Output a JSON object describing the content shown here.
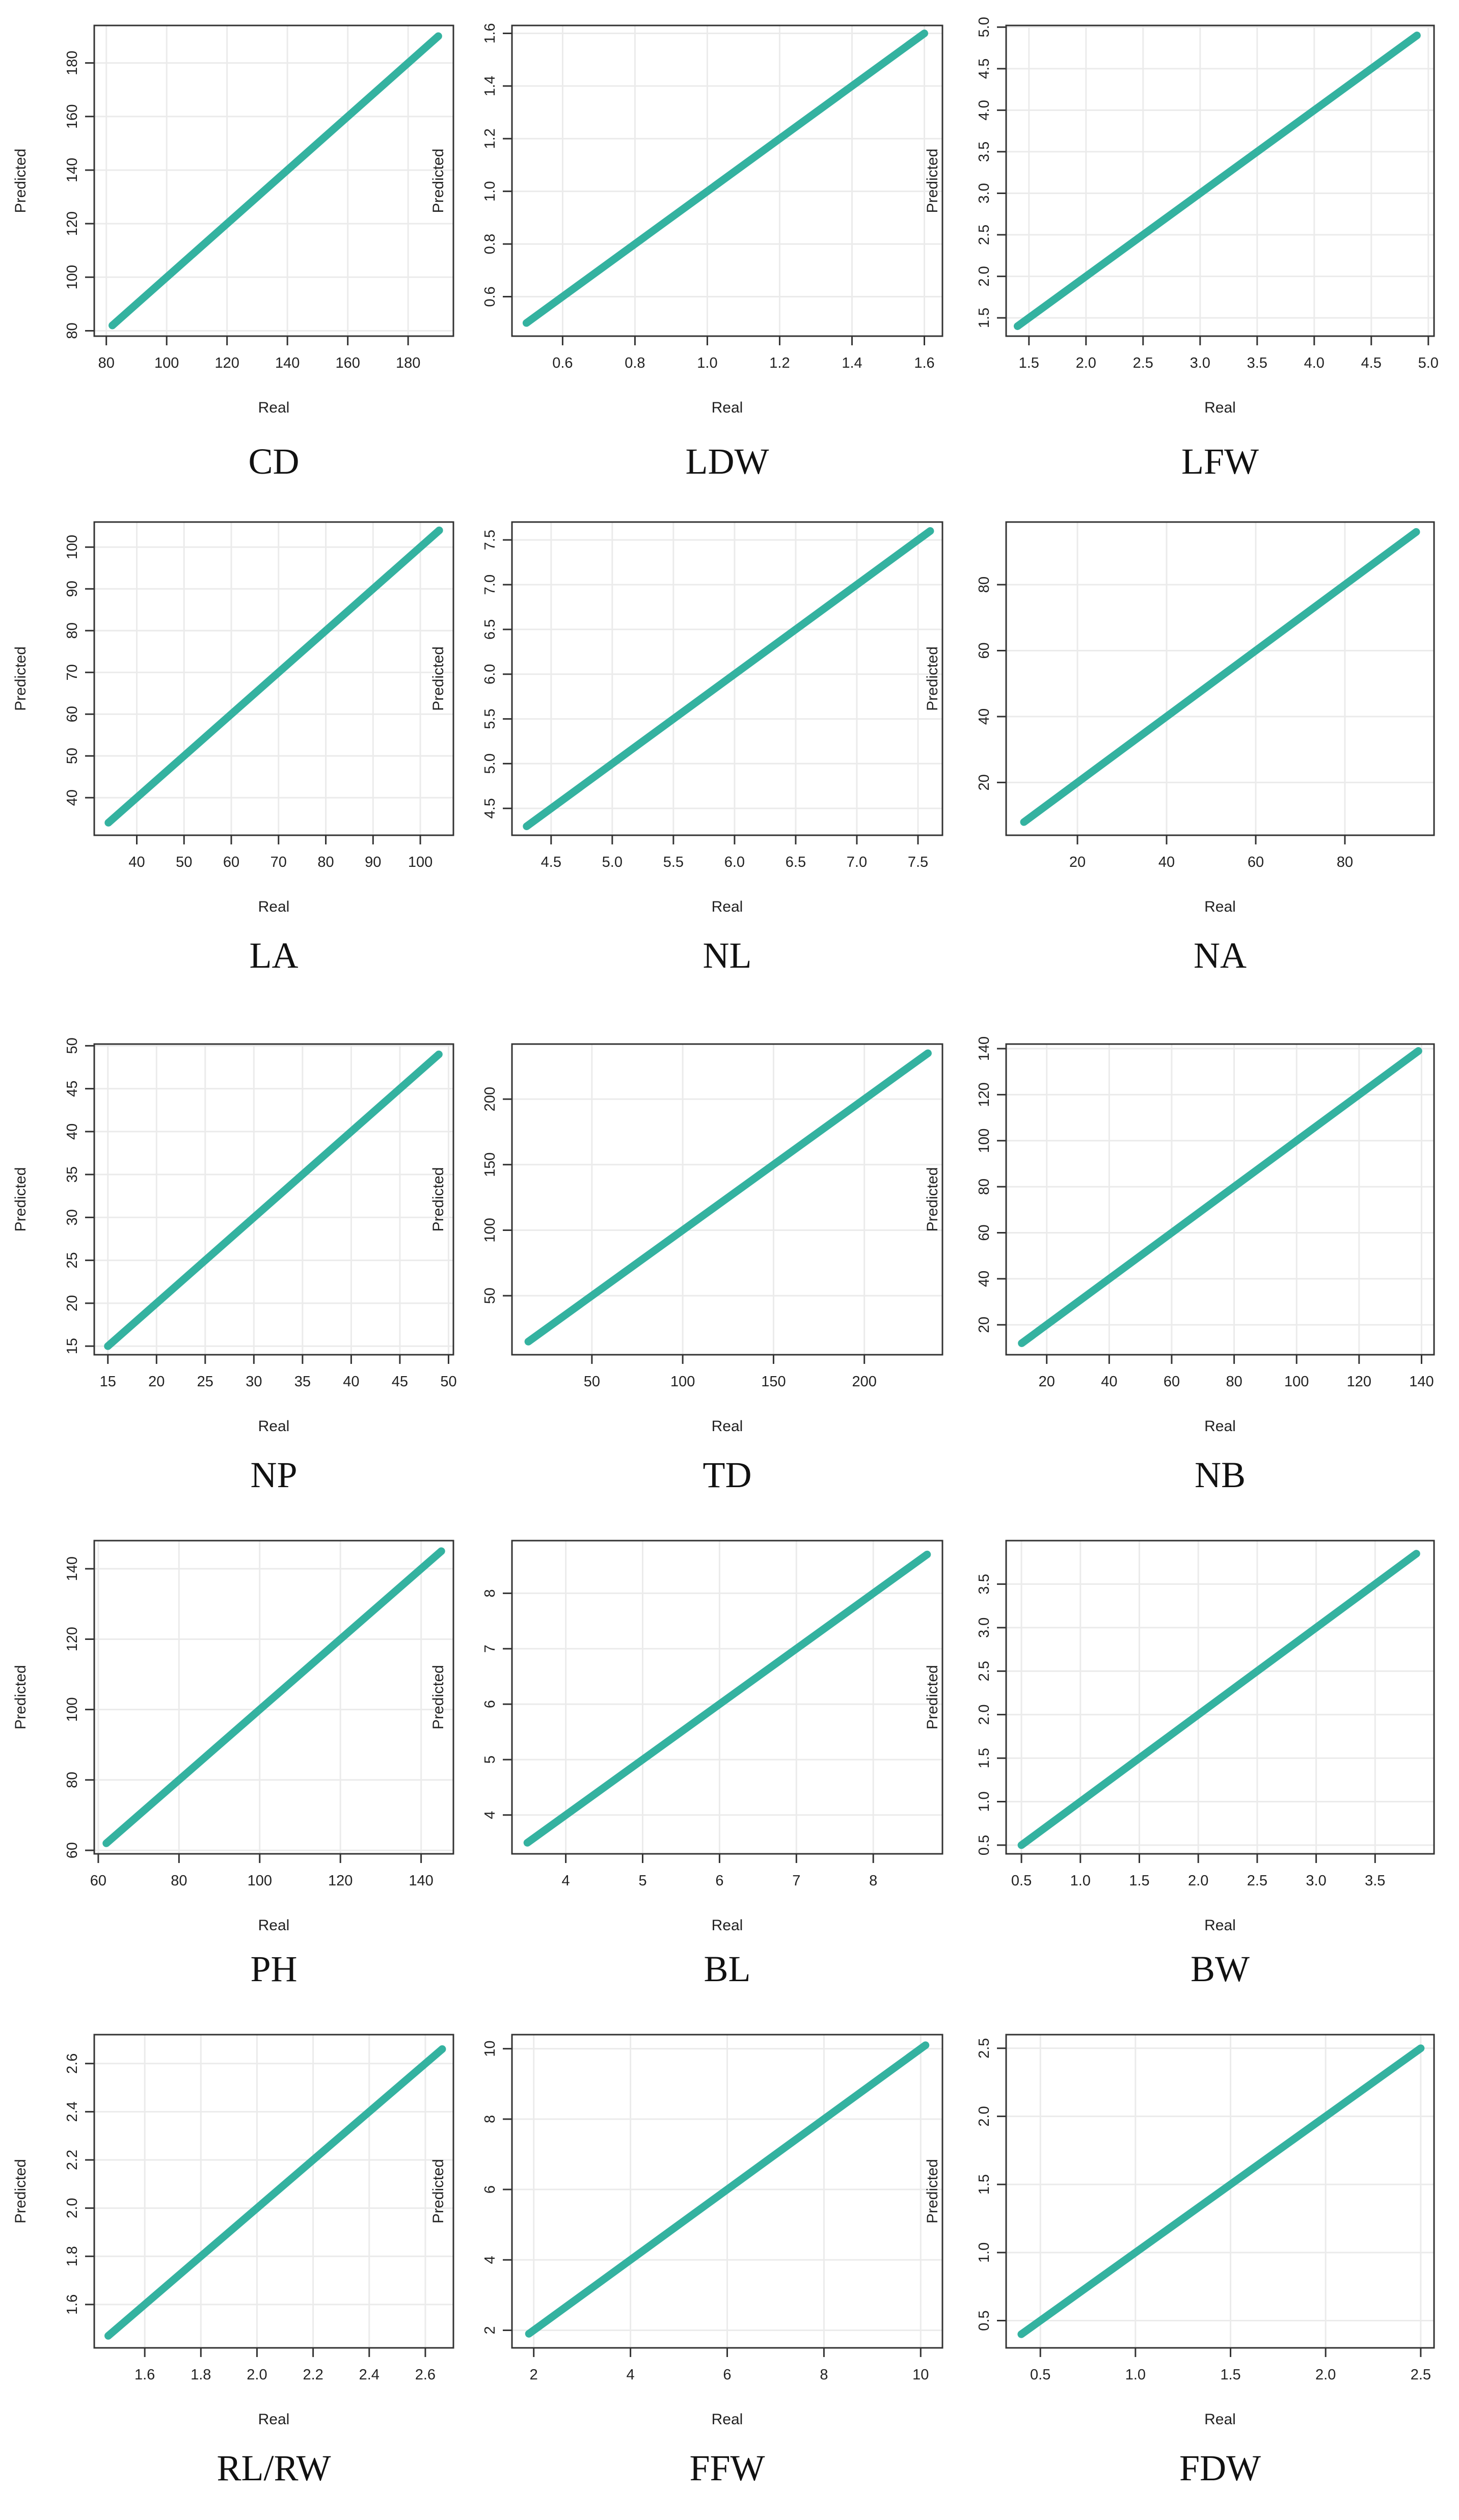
{
  "figure": {
    "xlabel": "Real",
    "ylabel": "Predicted",
    "line_color": "#34b2a0",
    "grid_color": "#ebebeb",
    "frame_color": "#333333"
  },
  "chart_data": [
    {
      "type": "line",
      "caption": "CD",
      "xlabel": "Real",
      "ylabel": "Predicted",
      "x": [
        82,
        190
      ],
      "y": [
        82,
        190
      ],
      "xlim": [
        76,
        195
      ],
      "ylim": [
        78,
        194
      ],
      "xticks": [
        80,
        100,
        120,
        140,
        160,
        180
      ],
      "yticks": [
        80,
        100,
        120,
        140,
        160,
        180
      ],
      "xtick_labels": [
        "80",
        "100",
        "120",
        "140",
        "160",
        "180"
      ],
      "ytick_labels": [
        "80",
        "100",
        "120",
        "140",
        "160",
        "180"
      ]
    },
    {
      "type": "line",
      "caption": "LDW",
      "xlabel": "Real",
      "ylabel": "Predicted",
      "x": [
        0.5,
        1.6
      ],
      "y": [
        0.5,
        1.6
      ],
      "xlim": [
        0.46,
        1.65
      ],
      "ylim": [
        0.45,
        1.63
      ],
      "xticks": [
        0.6,
        0.8,
        1.0,
        1.2,
        1.4,
        1.6
      ],
      "yticks": [
        0.6,
        0.8,
        1.0,
        1.2,
        1.4,
        1.6
      ],
      "xtick_labels": [
        "0.6",
        "0.8",
        "1.0",
        "1.2",
        "1.4",
        "1.6"
      ],
      "ytick_labels": [
        "0.6",
        "0.8",
        "1.0",
        "1.2",
        "1.4",
        "1.6"
      ]
    },
    {
      "type": "line",
      "caption": "LFW",
      "xlabel": "Real",
      "ylabel": "Predicted",
      "x": [
        1.4,
        4.9
      ],
      "y": [
        1.4,
        4.9
      ],
      "xlim": [
        1.3,
        5.05
      ],
      "ylim": [
        1.28,
        5.02
      ],
      "xticks": [
        1.5,
        2.0,
        2.5,
        3.0,
        3.5,
        4.0,
        4.5,
        5.0
      ],
      "yticks": [
        1.5,
        2.0,
        2.5,
        3.0,
        3.5,
        4.0,
        4.5,
        5.0
      ],
      "xtick_labels": [
        "1.5",
        "2.0",
        "2.5",
        "3.0",
        "3.5",
        "4.0",
        "4.5",
        "5.0"
      ],
      "ytick_labels": [
        "1.5",
        "2.0",
        "2.5",
        "3.0",
        "3.5",
        "4.0",
        "4.5",
        "5.0"
      ]
    },
    {
      "type": "line",
      "caption": "LA",
      "xlabel": "Real",
      "ylabel": "Predicted",
      "x": [
        34,
        104
      ],
      "y": [
        34,
        104
      ],
      "xlim": [
        31,
        107
      ],
      "ylim": [
        31,
        106
      ],
      "xticks": [
        40,
        50,
        60,
        70,
        80,
        90,
        100
      ],
      "yticks": [
        40,
        50,
        60,
        70,
        80,
        90,
        100
      ],
      "xtick_labels": [
        "40",
        "50",
        "60",
        "70",
        "80",
        "90",
        "100"
      ],
      "ytick_labels": [
        "40",
        "50",
        "60",
        "70",
        "80",
        "90",
        "100"
      ]
    },
    {
      "type": "line",
      "caption": "NL",
      "xlabel": "Real",
      "ylabel": "Predicted",
      "x": [
        4.3,
        7.6
      ],
      "y": [
        4.3,
        7.6
      ],
      "xlim": [
        4.18,
        7.7
      ],
      "ylim": [
        4.2,
        7.7
      ],
      "xticks": [
        4.5,
        5.0,
        5.5,
        6.0,
        6.5,
        7.0,
        7.5
      ],
      "yticks": [
        4.5,
        5.0,
        5.5,
        6.0,
        6.5,
        7.0,
        7.5
      ],
      "xtick_labels": [
        "4.5",
        "5.0",
        "5.5",
        "6.0",
        "6.5",
        "7.0",
        "7.5"
      ],
      "ytick_labels": [
        "4.5",
        "5.0",
        "5.5",
        "6.0",
        "6.5",
        "7.0",
        "7.5"
      ]
    },
    {
      "type": "line",
      "caption": "NA",
      "xlabel": "Real",
      "ylabel": "Predicted",
      "x": [
        8,
        96
      ],
      "y": [
        8,
        96
      ],
      "xlim": [
        4,
        100
      ],
      "ylim": [
        4,
        99
      ],
      "xticks": [
        20,
        40,
        60,
        80
      ],
      "yticks": [
        20,
        40,
        60,
        80
      ],
      "xtick_labels": [
        "20",
        "40",
        "60",
        "80"
      ],
      "ytick_labels": [
        "20",
        "40",
        "60",
        "80"
      ]
    },
    {
      "type": "line",
      "caption": "NP",
      "xlabel": "Real",
      "ylabel": "Predicted",
      "x": [
        15,
        49
      ],
      "y": [
        15,
        49
      ],
      "xlim": [
        13.6,
        50.5
      ],
      "ylim": [
        14,
        50.2
      ],
      "xticks": [
        15,
        20,
        25,
        30,
        35,
        40,
        45,
        50
      ],
      "yticks": [
        15,
        20,
        25,
        30,
        35,
        40,
        45,
        50
      ],
      "xtick_labels": [
        "15",
        "20",
        "25",
        "30",
        "35",
        "40",
        "45",
        "50"
      ],
      "ytick_labels": [
        "15",
        "20",
        "25",
        "30",
        "35",
        "40",
        "45",
        "50"
      ]
    },
    {
      "type": "line",
      "caption": "TD",
      "xlabel": "Real",
      "ylabel": "Predicted",
      "x": [
        15,
        235
      ],
      "y": [
        15,
        235
      ],
      "xlim": [
        6,
        243
      ],
      "ylim": [
        5,
        242
      ],
      "xticks": [
        50,
        100,
        150,
        200
      ],
      "yticks": [
        50,
        100,
        150,
        200
      ],
      "xtick_labels": [
        "50",
        "100",
        "150",
        "200"
      ],
      "ytick_labels": [
        "50",
        "100",
        "150",
        "200"
      ]
    },
    {
      "type": "line",
      "caption": "NB",
      "xlabel": "Real",
      "ylabel": "Predicted",
      "x": [
        12,
        139
      ],
      "y": [
        12,
        139
      ],
      "xlim": [
        7,
        144
      ],
      "ylim": [
        7,
        142
      ],
      "xticks": [
        20,
        40,
        60,
        80,
        100,
        120,
        140
      ],
      "yticks": [
        20,
        40,
        60,
        80,
        100,
        120,
        140
      ],
      "xtick_labels": [
        "20",
        "40",
        "60",
        "80",
        "100",
        "120",
        "140"
      ],
      "ytick_labels": [
        "20",
        "40",
        "60",
        "80",
        "100",
        "120",
        "140"
      ]
    },
    {
      "type": "line",
      "caption": "PH",
      "xlabel": "Real",
      "ylabel": "Predicted",
      "x": [
        62,
        145
      ],
      "y": [
        62,
        145
      ],
      "xlim": [
        59,
        148
      ],
      "ylim": [
        59,
        148
      ],
      "xticks": [
        60,
        80,
        100,
        120,
        140
      ],
      "yticks": [
        60,
        80,
        100,
        120,
        140
      ],
      "xtick_labels": [
        "60",
        "80",
        "100",
        "120",
        "140"
      ],
      "ytick_labels": [
        "60",
        "80",
        "100",
        "120",
        "140"
      ]
    },
    {
      "type": "line",
      "caption": "BL",
      "xlabel": "Real",
      "ylabel": "Predicted",
      "x": [
        3.5,
        8.7
      ],
      "y": [
        3.5,
        8.7
      ],
      "xlim": [
        3.3,
        8.9
      ],
      "ylim": [
        3.3,
        8.95
      ],
      "xticks": [
        4,
        5,
        6,
        7,
        8
      ],
      "yticks": [
        4,
        5,
        6,
        7,
        8
      ],
      "xtick_labels": [
        "4",
        "5",
        "6",
        "7",
        "8"
      ],
      "ytick_labels": [
        "4",
        "5",
        "6",
        "7",
        "8"
      ]
    },
    {
      "type": "line",
      "caption": "BW",
      "xlabel": "Real",
      "ylabel": "Predicted",
      "x": [
        0.5,
        3.85
      ],
      "y": [
        0.5,
        3.85
      ],
      "xlim": [
        0.37,
        4.0
      ],
      "ylim": [
        0.4,
        4.0
      ],
      "xticks": [
        0.5,
        1.0,
        1.5,
        2.0,
        2.5,
        3.0,
        3.5
      ],
      "yticks": [
        0.5,
        1.0,
        1.5,
        2.0,
        2.5,
        3.0,
        3.5
      ],
      "xtick_labels": [
        "0.5",
        "1.0",
        "1.5",
        "2.0",
        "2.5",
        "3.0",
        "3.5"
      ],
      "ytick_labels": [
        "0.5",
        "1.0",
        "1.5",
        "2.0",
        "2.5",
        "3.0",
        "3.5"
      ]
    },
    {
      "type": "line",
      "caption": "RL/RW",
      "xlabel": "Real",
      "ylabel": "Predicted",
      "x": [
        1.47,
        2.66
      ],
      "y": [
        1.47,
        2.66
      ],
      "xlim": [
        1.42,
        2.7
      ],
      "ylim": [
        1.42,
        2.72
      ],
      "xticks": [
        1.6,
        1.8,
        2.0,
        2.2,
        2.4,
        2.6
      ],
      "yticks": [
        1.6,
        1.8,
        2.0,
        2.2,
        2.4,
        2.6
      ],
      "xtick_labels": [
        "1.6",
        "1.8",
        "2.0",
        "2.2",
        "2.4",
        "2.6"
      ],
      "ytick_labels": [
        "1.6",
        "1.8",
        "2.0",
        "2.2",
        "2.4",
        "2.6"
      ]
    },
    {
      "type": "line",
      "caption": "FFW",
      "xlabel": "Real",
      "ylabel": "Predicted",
      "x": [
        1.9,
        10.1
      ],
      "y": [
        1.9,
        10.1
      ],
      "xlim": [
        1.55,
        10.45
      ],
      "ylim": [
        1.5,
        10.4
      ],
      "xticks": [
        2,
        4,
        6,
        8,
        10
      ],
      "yticks": [
        2,
        4,
        6,
        8,
        10
      ],
      "xtick_labels": [
        "2",
        "4",
        "6",
        "8",
        "10"
      ],
      "ytick_labels": [
        "2",
        "4",
        "6",
        "8",
        "10"
      ]
    },
    {
      "type": "line",
      "caption": "FDW",
      "xlabel": "Real",
      "ylabel": "Predicted",
      "x": [
        0.4,
        2.5
      ],
      "y": [
        0.4,
        2.5
      ],
      "xlim": [
        0.32,
        2.57
      ],
      "ylim": [
        0.3,
        2.6
      ],
      "xticks": [
        0.5,
        1.0,
        1.5,
        2.0,
        2.5
      ],
      "yticks": [
        0.5,
        1.0,
        1.5,
        2.0,
        2.5
      ],
      "xtick_labels": [
        "0.5",
        "1.0",
        "1.5",
        "2.0",
        "2.5"
      ],
      "ytick_labels": [
        "0.5",
        "1.0",
        "1.5",
        "2.0",
        "2.5"
      ]
    }
  ]
}
